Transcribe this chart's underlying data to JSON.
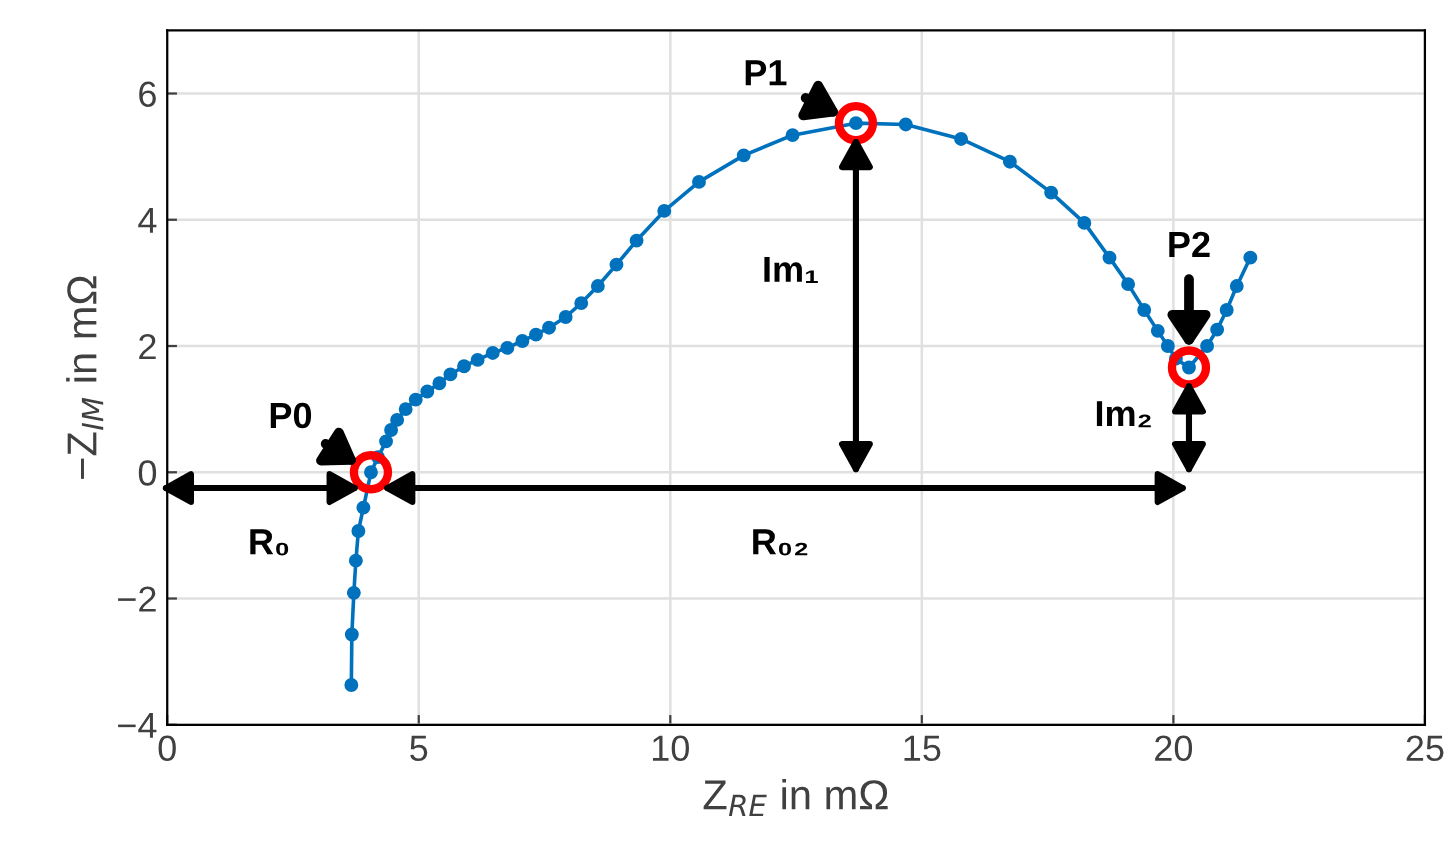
{
  "chart_data": {
    "type": "line",
    "xlabel": "Z$_{RE}$ in mΩ",
    "ylabel": "−Z$_{IM}$ in mΩ",
    "xlim": [
      0,
      25
    ],
    "ylim": [
      -4,
      7
    ],
    "xticks": [
      0,
      5,
      10,
      15,
      20,
      25
    ],
    "yticks": [
      -4,
      -2,
      0,
      2,
      4,
      6
    ],
    "grid": true,
    "series": [
      {
        "color": "#0072bd",
        "marker": "circle",
        "line_style": "solid",
        "x": [
          3.66,
          3.67,
          3.71,
          3.75,
          3.8,
          3.9,
          4.05,
          4.19,
          4.35,
          4.45,
          4.57,
          4.74,
          4.94,
          5.17,
          5.41,
          5.63,
          5.9,
          6.17,
          6.47,
          6.76,
          7.06,
          7.33,
          7.59,
          7.92,
          8.23,
          8.56,
          8.93,
          9.33,
          9.88,
          10.57,
          11.46,
          12.43,
          13.69,
          14.68,
          15.78,
          16.75,
          17.57,
          18.23,
          18.73,
          19.1,
          19.42,
          19.69,
          19.89,
          20.05,
          20.31,
          20.67,
          20.87,
          21.06,
          21.26,
          21.53
        ],
        "values": [
          -3.37,
          -2.57,
          -1.91,
          -1.4,
          -0.93,
          -0.56,
          0.0,
          0.24,
          0.49,
          0.67,
          0.83,
          1.0,
          1.15,
          1.28,
          1.41,
          1.55,
          1.68,
          1.78,
          1.89,
          1.97,
          2.08,
          2.18,
          2.29,
          2.46,
          2.68,
          2.95,
          3.29,
          3.67,
          4.14,
          4.6,
          5.02,
          5.34,
          5.53,
          5.51,
          5.28,
          4.92,
          4.43,
          3.95,
          3.4,
          2.98,
          2.57,
          2.24,
          2.0,
          1.8,
          1.66,
          2.0,
          2.26,
          2.57,
          2.95,
          3.4
        ]
      },
      {
        "type": "scatter",
        "color": "#ff0000",
        "marker": "circle",
        "x": [
          4.05,
          13.69,
          20.31
        ],
        "values": [
          0.0,
          5.53,
          1.66
        ]
      }
    ],
    "annotations": [
      "P0",
      "P1",
      "P2",
      "R₀",
      "R₀₂",
      "Im₁",
      "Im₂"
    ]
  }
}
